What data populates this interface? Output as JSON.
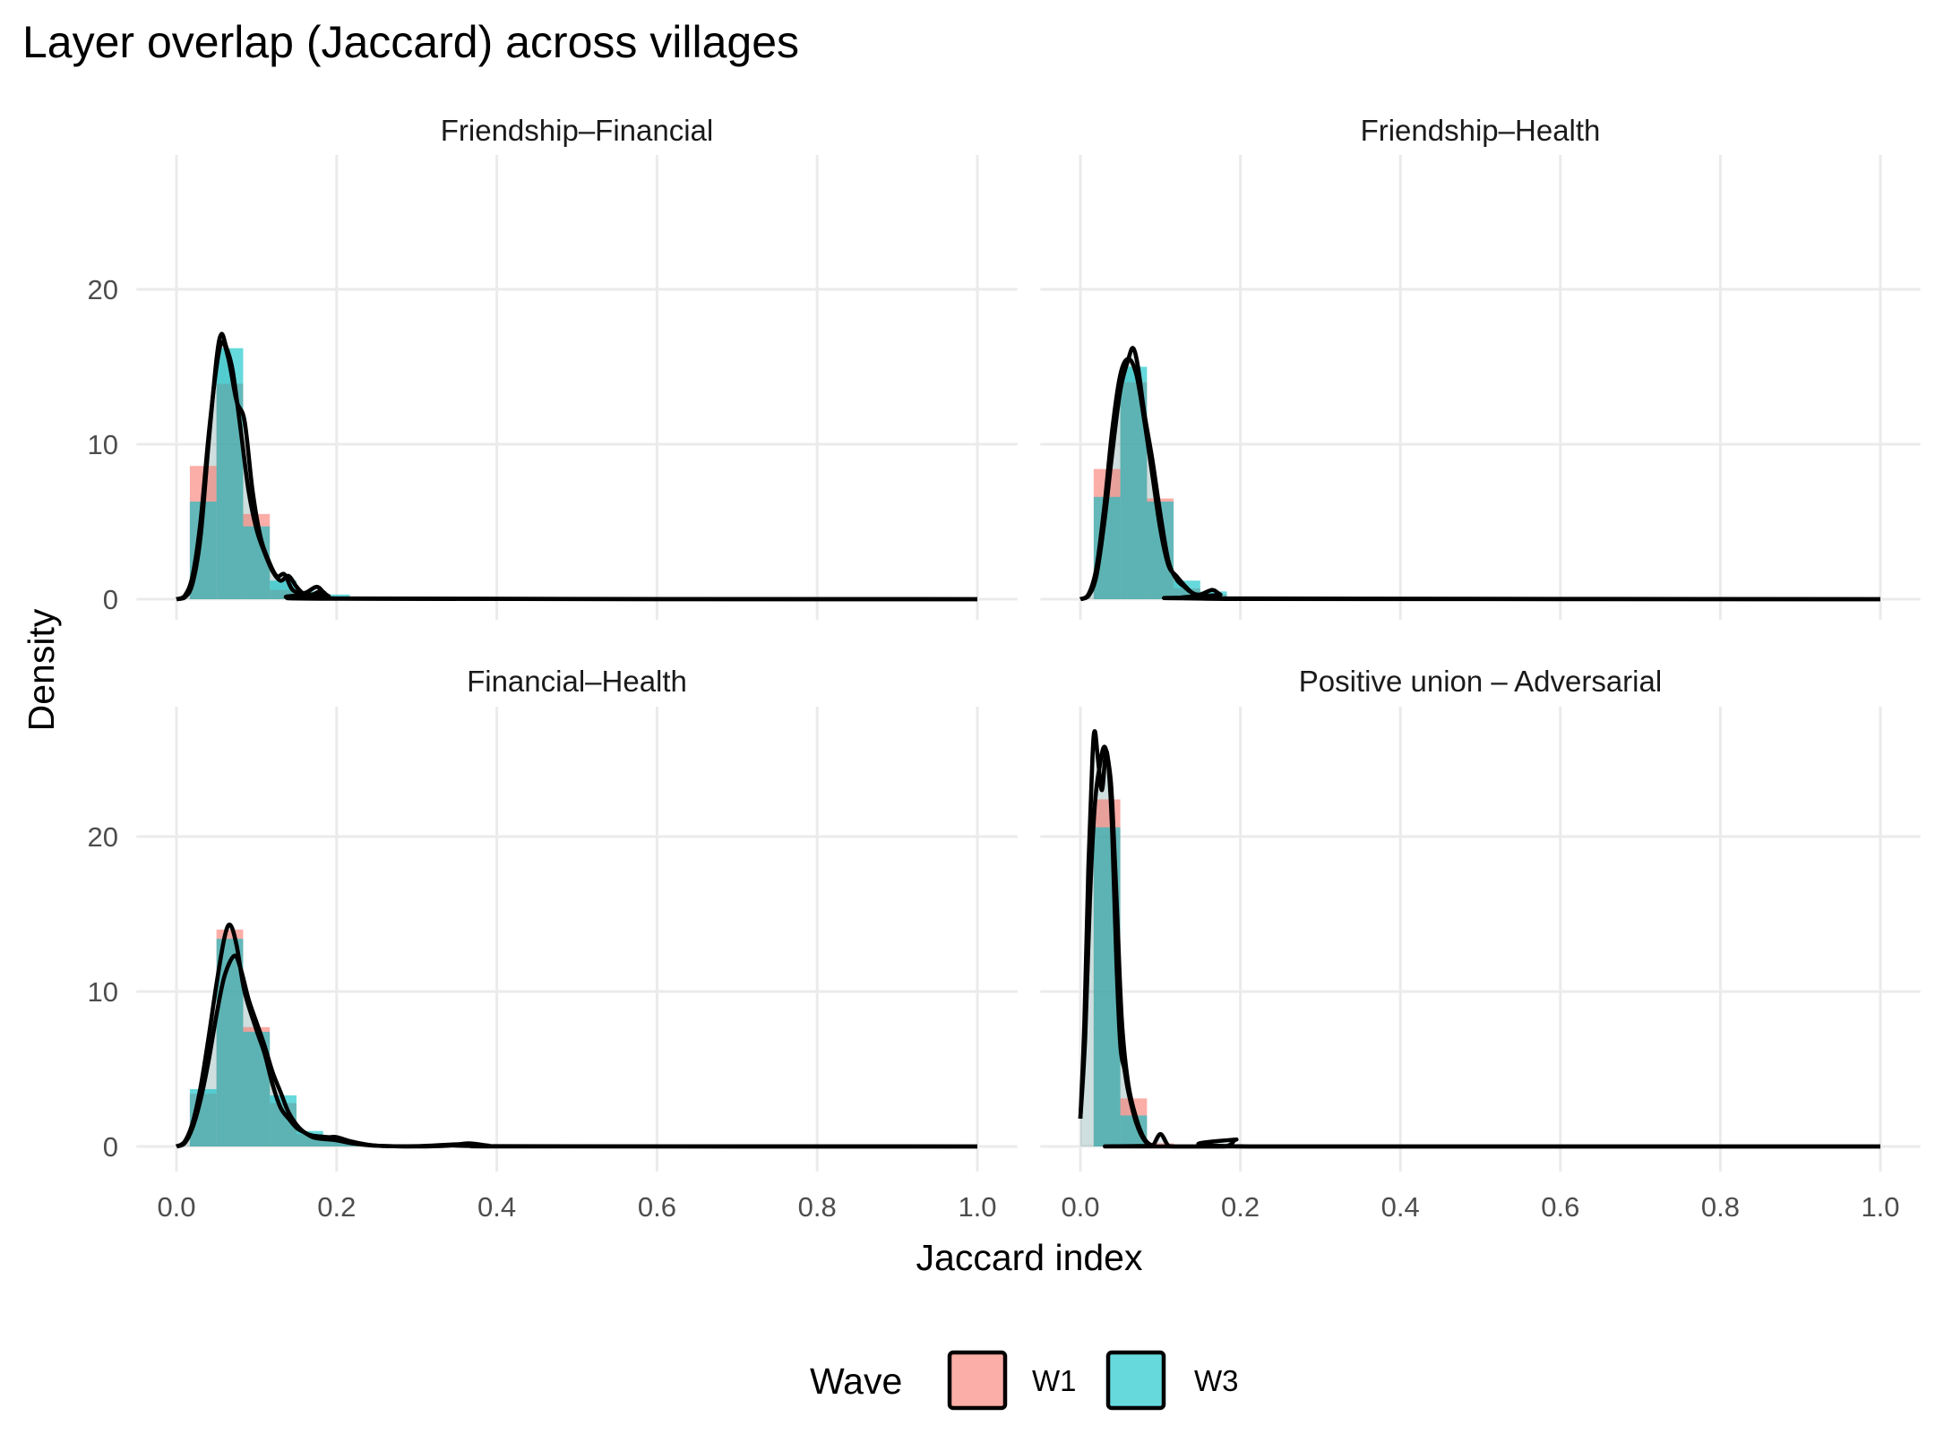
{
  "chart_data": {
    "type": "histogram+density",
    "title": "Layer overlap (Jaccard) across villages",
    "xlabel": "Jaccard index",
    "ylabel": "Density",
    "xlim": [
      0,
      1
    ],
    "ylim": [
      0,
      27
    ],
    "x_ticks": [
      "0.0",
      "0.2",
      "0.4",
      "0.6",
      "0.8",
      "1.0"
    ],
    "y_ticks": [
      "0",
      "10",
      "20"
    ],
    "grid": true,
    "binwidth": 0.0333,
    "legend": {
      "title": "Wave",
      "position": "bottom",
      "entries": [
        "W1",
        "W3"
      ]
    },
    "colors": {
      "W1": "#F8766D",
      "W3": "#00BFC4",
      "density_line": "#000000"
    },
    "panels": [
      {
        "label": "Friendship–Financial",
        "hist": {
          "W1": [
            8.6,
            13.9,
            5.5,
            0.6,
            0.3,
            0.1
          ],
          "W3": [
            6.3,
            16.2,
            4.7,
            1.2,
            0.5,
            0.3
          ]
        },
        "density": {
          "W1": [
            [
              0,
              0
            ],
            [
              0.01,
              0.1
            ],
            [
              0.02,
              1
            ],
            [
              0.03,
              4
            ],
            [
              0.04,
              10
            ],
            [
              0.05,
              15.5
            ],
            [
              0.056,
              17.1
            ],
            [
              0.062,
              16.3
            ],
            [
              0.07,
              14.8
            ],
            [
              0.08,
              11
            ],
            [
              0.09,
              7
            ],
            [
              0.1,
              4.5
            ],
            [
              0.11,
              3
            ],
            [
              0.12,
              1.8
            ],
            [
              0.13,
              1.2
            ],
            [
              0.14,
              1.5
            ],
            [
              0.15,
              0.8
            ],
            [
              0.16,
              0.3
            ],
            [
              0.17,
              0.3
            ],
            [
              0.18,
              0.5
            ],
            [
              0.19,
              0.2
            ],
            [
              0.2,
              0.03
            ],
            [
              1,
              0
            ]
          ],
          "W3": [
            [
              0,
              0
            ],
            [
              0.01,
              0.2
            ],
            [
              0.02,
              1.5
            ],
            [
              0.03,
              5
            ],
            [
              0.04,
              10.5
            ],
            [
              0.05,
              15
            ],
            [
              0.057,
              16.6
            ],
            [
              0.065,
              15.5
            ],
            [
              0.075,
              12.8
            ],
            [
              0.085,
              11.5
            ],
            [
              0.095,
              7
            ],
            [
              0.105,
              4
            ],
            [
              0.115,
              2.5
            ],
            [
              0.125,
              1.5
            ],
            [
              0.135,
              1.6
            ],
            [
              0.145,
              0.6
            ],
            [
              0.16,
              0.4
            ],
            [
              0.175,
              0.8
            ],
            [
              0.185,
              0.4
            ],
            [
              0.2,
              0.05
            ],
            [
              1,
              0
            ]
          ]
        }
      },
      {
        "label": "Friendship–Health",
        "hist": {
          "W1": [
            8.4,
            14.0,
            6.5,
            0.7,
            0.3
          ],
          "W3": [
            6.6,
            15.0,
            6.3,
            1.2,
            0.5
          ]
        },
        "density": {
          "W1": [
            [
              0,
              0
            ],
            [
              0.01,
              0.3
            ],
            [
              0.02,
              2
            ],
            [
              0.03,
              6
            ],
            [
              0.04,
              11
            ],
            [
              0.05,
              14.5
            ],
            [
              0.06,
              15.5
            ],
            [
              0.07,
              14.5
            ],
            [
              0.08,
              11.5
            ],
            [
              0.09,
              8
            ],
            [
              0.1,
              4.5
            ],
            [
              0.11,
              2.2
            ],
            [
              0.12,
              1.5
            ],
            [
              0.13,
              0.9
            ],
            [
              0.14,
              0.4
            ],
            [
              0.15,
              0.3
            ],
            [
              0.165,
              0.6
            ],
            [
              0.175,
              0.3
            ],
            [
              0.19,
              0.02
            ],
            [
              1,
              0
            ]
          ],
          "W3": [
            [
              0,
              0
            ],
            [
              0.01,
              0.2
            ],
            [
              0.02,
              1.5
            ],
            [
              0.03,
              5
            ],
            [
              0.04,
              9.5
            ],
            [
              0.05,
              13.5
            ],
            [
              0.06,
              15.5
            ],
            [
              0.066,
              16.2
            ],
            [
              0.072,
              15
            ],
            [
              0.08,
              12
            ],
            [
              0.09,
              9
            ],
            [
              0.1,
              5.5
            ],
            [
              0.11,
              2.5
            ],
            [
              0.12,
              1.3
            ],
            [
              0.13,
              0.8
            ],
            [
              0.14,
              0.4
            ],
            [
              0.155,
              0.15
            ],
            [
              0.17,
              0.05
            ],
            [
              1,
              0
            ]
          ]
        }
      },
      {
        "label": "Financial–Health",
        "hist": {
          "W1": [
            3.4,
            14.0,
            7.7,
            2.8,
            0.8,
            0.4,
            0.1,
            0,
            0,
            0,
            0.15
          ],
          "W3": [
            3.7,
            13.4,
            7.4,
            3.3,
            1.0,
            0.4,
            0.1,
            0,
            0,
            0,
            0.15
          ]
        },
        "density": {
          "W1": [
            [
              0,
              0
            ],
            [
              0.01,
              0.3
            ],
            [
              0.02,
              1.5
            ],
            [
              0.03,
              3.8
            ],
            [
              0.04,
              7
            ],
            [
              0.05,
              10.5
            ],
            [
              0.06,
              13.5
            ],
            [
              0.067,
              14.3
            ],
            [
              0.075,
              13
            ],
            [
              0.085,
              10
            ],
            [
              0.1,
              7.5
            ],
            [
              0.11,
              6
            ],
            [
              0.12,
              4
            ],
            [
              0.13,
              2.5
            ],
            [
              0.14,
              1.8
            ],
            [
              0.15,
              1.2
            ],
            [
              0.16,
              0.9
            ],
            [
              0.17,
              0.6
            ],
            [
              0.18,
              0.5
            ],
            [
              0.2,
              0.4
            ],
            [
              0.22,
              0.2
            ],
            [
              0.25,
              0.05
            ],
            [
              0.3,
              0
            ],
            [
              0.34,
              0.05
            ],
            [
              0.365,
              0.2
            ],
            [
              0.39,
              0.05
            ],
            [
              0.42,
              0
            ],
            [
              1,
              0
            ]
          ],
          "W3": [
            [
              0,
              0
            ],
            [
              0.01,
              0.2
            ],
            [
              0.02,
              1.2
            ],
            [
              0.03,
              3
            ],
            [
              0.04,
              5.5
            ],
            [
              0.05,
              8.5
            ],
            [
              0.06,
              11
            ],
            [
              0.072,
              12.3
            ],
            [
              0.08,
              11.5
            ],
            [
              0.09,
              9.5
            ],
            [
              0.1,
              8
            ],
            [
              0.11,
              6.5
            ],
            [
              0.12,
              4.8
            ],
            [
              0.13,
              3.5
            ],
            [
              0.14,
              2.2
            ],
            [
              0.15,
              1.4
            ],
            [
              0.16,
              0.9
            ],
            [
              0.17,
              0.7
            ],
            [
              0.19,
              0.6
            ],
            [
              0.2,
              0.6
            ],
            [
              0.22,
              0.3
            ],
            [
              0.25,
              0.05
            ],
            [
              0.3,
              0.02
            ],
            [
              0.36,
              0.15
            ],
            [
              0.4,
              0.02
            ],
            [
              1,
              0
            ]
          ]
        }
      },
      {
        "label": "Positive union – Adversarial",
        "hist": {
          "W1": [
            22.4,
            3.1,
            0.2
          ],
          "W3": [
            20.6,
            2.0,
            0
          ]
        },
        "density": {
          "W1": [
            [
              0,
              1.8
            ],
            [
              0.005,
              8
            ],
            [
              0.01,
              18
            ],
            [
              0.015,
              25
            ],
            [
              0.018,
              26.8
            ],
            [
              0.022,
              25
            ],
            [
              0.027,
              23
            ],
            [
              0.032,
              25.5
            ],
            [
              0.036,
              24
            ],
            [
              0.04,
              20
            ],
            [
              0.045,
              12
            ],
            [
              0.05,
              6.5
            ],
            [
              0.055,
              5
            ],
            [
              0.06,
              3.5
            ],
            [
              0.07,
              1.5
            ],
            [
              0.08,
              0.4
            ],
            [
              0.09,
              0.05
            ],
            [
              0.1,
              0.8
            ],
            [
              0.11,
              0.05
            ],
            [
              0.12,
              0
            ],
            [
              0.18,
              0
            ],
            [
              0.195,
              0.45
            ],
            [
              0.21,
              0
            ],
            [
              1,
              0
            ]
          ],
          "W3": [
            [
              0,
              1.8
            ],
            [
              0.006,
              7
            ],
            [
              0.012,
              16
            ],
            [
              0.018,
              22
            ],
            [
              0.024,
              24.5
            ],
            [
              0.03,
              25.8
            ],
            [
              0.036,
              24.5
            ],
            [
              0.04,
              22
            ],
            [
              0.046,
              15
            ],
            [
              0.052,
              8
            ],
            [
              0.06,
              4
            ],
            [
              0.07,
              1.8
            ],
            [
              0.08,
              0.5
            ],
            [
              0.09,
              0.05
            ],
            [
              0.1,
              0
            ],
            [
              1,
              0
            ]
          ]
        }
      }
    ]
  }
}
